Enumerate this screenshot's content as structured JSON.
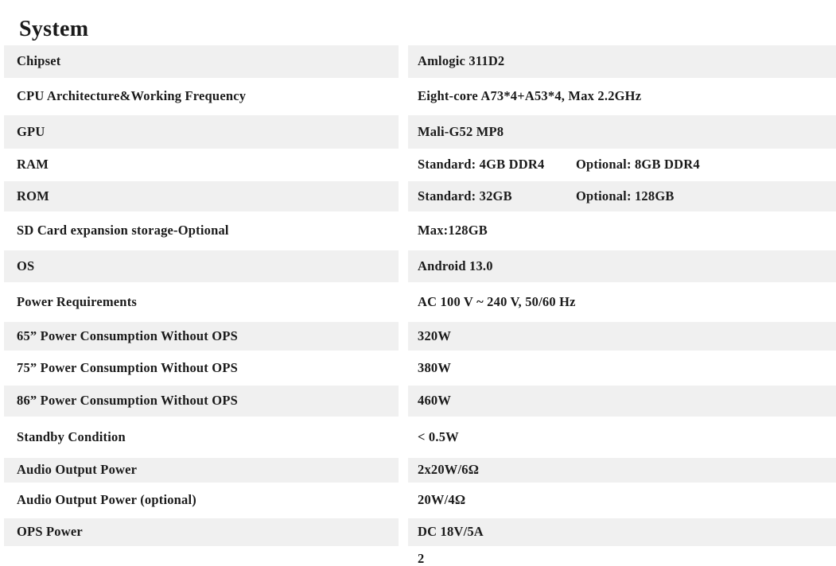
{
  "page_title": "System",
  "colors": {
    "row_shade": "#f0f0f0",
    "text": "#1a1a1a",
    "background": "#ffffff"
  },
  "table": {
    "rows": [
      {
        "label": "Chipset",
        "value": "Amlogic 311D2"
      },
      {
        "label": "CPU Architecture&Working Frequency",
        "value": "Eight-core A73*4+A53*4, Max 2.2GHz"
      },
      {
        "label": "GPU",
        "value": "Mali-G52 MP8"
      },
      {
        "label": "RAM",
        "value": "Standard: 4GB DDR4",
        "value2": "Optional: 8GB DDR4"
      },
      {
        "label": "ROM",
        "value": "Standard: 32GB",
        "value2": "Optional: 128GB"
      },
      {
        "label": "SD Card expansion storage-Optional",
        "value": "Max:128GB"
      },
      {
        "label": "OS",
        "value": "Android 13.0"
      },
      {
        "label": "Power Requirements",
        "value": "AC 100 V ~ 240 V, 50/60 Hz"
      },
      {
        "label": "65” Power Consumption Without OPS",
        "value": "320W"
      },
      {
        "label": "75” Power Consumption Without OPS",
        "value": "380W"
      },
      {
        "label": "86” Power Consumption Without OPS",
        "value": "460W"
      },
      {
        "label": "Standby Condition",
        "value": "< 0.5W"
      },
      {
        "label": "Audio Output Power",
        "value": "2x20W/6Ω"
      },
      {
        "label": "Audio Output Power (optional)",
        "value": "20W/4Ω"
      },
      {
        "label": "OPS Power",
        "value": "DC 18V/5A"
      }
    ],
    "clipped_next_value": "2"
  }
}
